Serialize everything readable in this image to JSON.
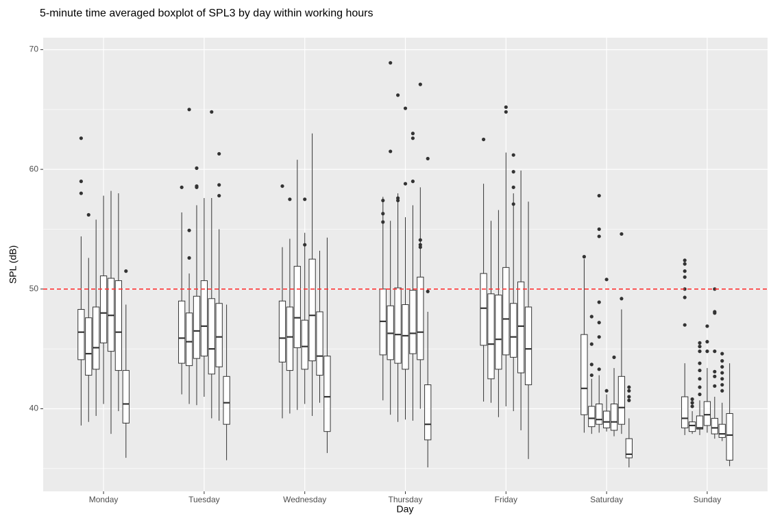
{
  "chart_data": {
    "type": "boxplot",
    "title": "5-minute time averaged boxplot of SPL3 by day within working hours",
    "x_label": "Day",
    "y_label": "SPL (dB)",
    "categories": [
      "Monday",
      "Tuesday",
      "Wednesday",
      "Thursday",
      "Friday",
      "Saturday",
      "Sunday"
    ],
    "ylim": [
      33.1,
      71.0
    ],
    "yticks": [
      40,
      50,
      60,
      70
    ],
    "y_minor_grid": [
      35,
      45,
      55,
      65
    ],
    "grid": true,
    "reference_line": {
      "value": 50,
      "color": "#ff3333"
    },
    "box_color": "#ffffff",
    "line_color": "#333333",
    "background": "#ebebeb",
    "boxes": [
      [
        {
          "min": 38.6,
          "q1": 44.1,
          "median": 46.4,
          "q3": 48.3,
          "max": 54.4,
          "outliers": [
            62.6,
            59.0,
            58.0
          ]
        },
        {
          "min": 38.9,
          "q1": 42.8,
          "median": 44.6,
          "q3": 47.6,
          "max": 52.6,
          "outliers": [
            56.2
          ]
        },
        {
          "min": 39.4,
          "q1": 43.3,
          "median": 45.1,
          "q3": 48.5,
          "max": 55.8,
          "outliers": []
        },
        {
          "min": 40.4,
          "q1": 45.5,
          "median": 48.0,
          "q3": 51.1,
          "max": 57.8,
          "outliers": []
        },
        {
          "min": 37.9,
          "q1": 44.8,
          "median": 47.8,
          "q3": 50.9,
          "max": 58.2,
          "outliers": []
        },
        {
          "min": 39.8,
          "q1": 43.2,
          "median": 46.4,
          "q3": 50.7,
          "max": 58.0,
          "outliers": []
        },
        {
          "min": 35.9,
          "q1": 38.8,
          "median": 40.4,
          "q3": 43.2,
          "max": 48.7,
          "outliers": [
            51.5
          ]
        }
      ],
      [
        {
          "min": 41.2,
          "q1": 43.8,
          "median": 45.9,
          "q3": 49.0,
          "max": 56.4,
          "outliers": [
            58.5
          ]
        },
        {
          "min": 40.4,
          "q1": 43.6,
          "median": 45.6,
          "q3": 48.0,
          "max": 51.3,
          "outliers": [
            65.0,
            54.9,
            52.6
          ]
        },
        {
          "min": 40.3,
          "q1": 44.2,
          "median": 46.5,
          "q3": 49.4,
          "max": 57.0,
          "outliers": [
            60.1,
            58.6,
            58.5
          ]
        },
        {
          "min": 41.0,
          "q1": 44.4,
          "median": 46.9,
          "q3": 50.7,
          "max": 57.6,
          "outliers": []
        },
        {
          "min": 39.2,
          "q1": 42.9,
          "median": 45.0,
          "q3": 49.2,
          "max": 57.6,
          "outliers": [
            64.8
          ]
        },
        {
          "min": 39.0,
          "q1": 43.5,
          "median": 46.0,
          "q3": 48.8,
          "max": 55.0,
          "outliers": [
            61.3,
            58.7,
            57.8
          ]
        },
        {
          "min": 35.7,
          "q1": 38.7,
          "median": 40.5,
          "q3": 42.7,
          "max": 48.7,
          "outliers": []
        }
      ],
      [
        {
          "min": 39.2,
          "q1": 43.9,
          "median": 45.9,
          "q3": 49.0,
          "max": 53.5,
          "outliers": [
            58.6
          ]
        },
        {
          "min": 39.6,
          "q1": 43.2,
          "median": 46.0,
          "q3": 48.5,
          "max": 54.2,
          "outliers": [
            57.5
          ]
        },
        {
          "min": 39.9,
          "q1": 45.1,
          "median": 47.6,
          "q3": 51.9,
          "max": 60.8,
          "outliers": []
        },
        {
          "min": 40.4,
          "q1": 43.3,
          "median": 45.2,
          "q3": 47.4,
          "max": 54.7,
          "outliers": [
            57.5,
            53.7
          ]
        },
        {
          "min": 39.4,
          "q1": 44.0,
          "median": 47.8,
          "q3": 52.5,
          "max": 63.0,
          "outliers": []
        },
        {
          "min": 40.5,
          "q1": 42.8,
          "median": 44.4,
          "q3": 48.1,
          "max": 53.2,
          "outliers": []
        },
        {
          "min": 36.3,
          "q1": 38.1,
          "median": 41.0,
          "q3": 44.4,
          "max": 54.3,
          "outliers": []
        }
      ],
      [
        {
          "min": 40.7,
          "q1": 44.5,
          "median": 47.3,
          "q3": 50.0,
          "max": 57.7,
          "outliers": [
            57.4,
            56.3,
            55.6
          ]
        },
        {
          "min": 39.5,
          "q1": 44.1,
          "median": 46.3,
          "q3": 48.6,
          "max": 55.7,
          "outliers": [
            68.9,
            61.5
          ]
        },
        {
          "min": 38.9,
          "q1": 43.8,
          "median": 46.2,
          "q3": 50.1,
          "max": 58.0,
          "outliers": [
            66.2,
            57.6,
            57.4
          ]
        },
        {
          "min": 39.1,
          "q1": 43.3,
          "median": 46.1,
          "q3": 48.7,
          "max": 56.0,
          "outliers": [
            65.1,
            58.8
          ]
        },
        {
          "min": 39.0,
          "q1": 44.6,
          "median": 46.3,
          "q3": 49.9,
          "max": 57.0,
          "outliers": [
            63.0,
            62.6,
            59.0
          ]
        },
        {
          "min": 40.0,
          "q1": 44.1,
          "median": 46.4,
          "q3": 51.0,
          "max": 58.5,
          "outliers": [
            67.1,
            54.1,
            53.7,
            53.5
          ]
        },
        {
          "min": 35.1,
          "q1": 37.4,
          "median": 38.7,
          "q3": 42.0,
          "max": 48.1,
          "outliers": [
            60.9,
            49.8
          ]
        }
      ],
      [
        {
          "min": 40.6,
          "q1": 45.3,
          "median": 48.4,
          "q3": 51.3,
          "max": 58.8,
          "outliers": [
            62.5
          ]
        },
        {
          "min": 40.5,
          "q1": 42.5,
          "median": 45.4,
          "q3": 49.6,
          "max": 55.7,
          "outliers": []
        },
        {
          "min": 39.3,
          "q1": 43.3,
          "median": 45.8,
          "q3": 49.5,
          "max": 56.6,
          "outliers": []
        },
        {
          "min": 40.2,
          "q1": 44.5,
          "median": 47.5,
          "q3": 51.8,
          "max": 61.4,
          "outliers": [
            65.2,
            64.8
          ]
        },
        {
          "min": 39.8,
          "q1": 44.3,
          "median": 46.0,
          "q3": 48.8,
          "max": 58.0,
          "outliers": [
            61.2,
            59.8,
            58.5,
            57.1
          ]
        },
        {
          "min": 38.2,
          "q1": 43.0,
          "median": 46.9,
          "q3": 50.6,
          "max": 59.9,
          "outliers": []
        },
        {
          "min": 35.8,
          "q1": 42.0,
          "median": 45.0,
          "q3": 48.5,
          "max": 57.3,
          "outliers": []
        }
      ],
      [
        {
          "min": 38.0,
          "q1": 39.5,
          "median": 41.7,
          "q3": 46.2,
          "max": 52.5,
          "outliers": [
            52.7
          ]
        },
        {
          "min": 37.9,
          "q1": 38.5,
          "median": 39.2,
          "q3": 40.2,
          "max": 42.5,
          "outliers": [
            47.7,
            45.4,
            43.7,
            42.8
          ]
        },
        {
          "min": 38.0,
          "q1": 38.7,
          "median": 39.1,
          "q3": 40.4,
          "max": 42.8,
          "outliers": [
            57.8,
            55.0,
            54.4,
            48.9,
            47.2,
            46.0,
            43.3
          ]
        },
        {
          "min": 38.1,
          "q1": 38.4,
          "median": 38.9,
          "q3": 39.8,
          "max": 41.2,
          "outliers": [
            50.8,
            41.5
          ]
        },
        {
          "min": 37.7,
          "q1": 38.2,
          "median": 38.9,
          "q3": 40.4,
          "max": 43.4,
          "outliers": [
            44.3
          ]
        },
        {
          "min": 37.9,
          "q1": 38.7,
          "median": 40.1,
          "q3": 42.7,
          "max": 48.3,
          "outliers": [
            54.6,
            49.2
          ]
        },
        {
          "min": 35.1,
          "q1": 35.9,
          "median": 36.2,
          "q3": 37.5,
          "max": 39.2,
          "outliers": [
            41.8,
            41.5,
            41.0,
            40.7
          ]
        }
      ],
      [
        {
          "min": 37.8,
          "q1": 38.4,
          "median": 39.2,
          "q3": 41.0,
          "max": 43.8,
          "outliers": [
            52.4,
            52.1,
            51.5,
            51.0,
            50.0,
            49.3,
            47.0
          ]
        },
        {
          "min": 37.9,
          "q1": 38.1,
          "median": 38.6,
          "q3": 38.9,
          "max": 39.8,
          "outliers": [
            40.8,
            40.5,
            40.2
          ]
        },
        {
          "min": 37.8,
          "q1": 38.3,
          "median": 38.4,
          "q3": 39.4,
          "max": 40.7,
          "outliers": [
            45.5,
            45.2,
            44.8,
            43.8,
            43.2,
            42.5,
            41.8,
            41.2
          ]
        },
        {
          "min": 38.0,
          "q1": 38.6,
          "median": 39.5,
          "q3": 40.6,
          "max": 43.4,
          "outliers": [
            46.9,
            45.6,
            44.8
          ]
        },
        {
          "min": 37.5,
          "q1": 37.9,
          "median": 38.4,
          "q3": 39.2,
          "max": 41.0,
          "outliers": [
            50.0,
            48.1,
            48.0,
            44.8,
            43.1,
            42.7,
            41.9
          ]
        },
        {
          "min": 37.3,
          "q1": 37.6,
          "median": 37.9,
          "q3": 38.7,
          "max": 40.5,
          "outliers": [
            44.6,
            44.0,
            43.5,
            43.0,
            42.5,
            42.0,
            41.5
          ]
        },
        {
          "min": 35.2,
          "q1": 35.7,
          "median": 37.8,
          "q3": 39.6,
          "max": 43.8,
          "outliers": []
        }
      ]
    ]
  }
}
